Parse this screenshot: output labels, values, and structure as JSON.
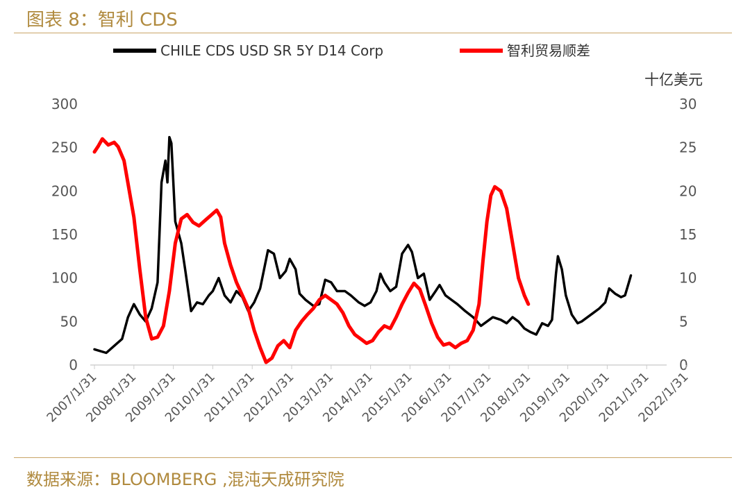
{
  "figure_title": "图表 8：智利 CDS",
  "source": "数据来源：BLOOMBERG ,混沌天成研究院",
  "chart_data": {
    "type": "line",
    "left_axis": {
      "ylim": [
        0,
        300
      ],
      "ticks": [
        "0",
        "50",
        "100",
        "150",
        "200",
        "250",
        "300"
      ]
    },
    "right_axis": {
      "unit": "十亿美元",
      "ylim": [
        0,
        30
      ],
      "ticks": [
        "0",
        "5",
        "10",
        "15",
        "20",
        "25",
        "30"
      ]
    },
    "x_tick_labels": [
      "2007/1/31",
      "2008/1/31",
      "2009/1/31",
      "2010/1/31",
      "2011/1/31",
      "2012/1/31",
      "2013/1/31",
      "2014/1/31",
      "2015/1/31",
      "2016/1/31",
      "2017/1/31",
      "2018/1/31",
      "2019/1/31",
      "2020/1/31",
      "2021/1/31",
      "2022/1/31"
    ],
    "legend_position": "top",
    "series": [
      {
        "name": "CHILE CDS USD SR 5Y D14 Corp",
        "color": "#000000",
        "axis": "left",
        "points": [
          [
            2007.0,
            18
          ],
          [
            2007.3,
            14
          ],
          [
            2007.45,
            20
          ],
          [
            2007.7,
            30
          ],
          [
            2007.85,
            55
          ],
          [
            2008.0,
            70
          ],
          [
            2008.15,
            58
          ],
          [
            2008.3,
            50
          ],
          [
            2008.45,
            65
          ],
          [
            2008.6,
            95
          ],
          [
            2008.7,
            210
          ],
          [
            2008.8,
            235
          ],
          [
            2008.85,
            210
          ],
          [
            2008.9,
            262
          ],
          [
            2008.95,
            255
          ],
          [
            2009.05,
            165
          ],
          [
            2009.2,
            140
          ],
          [
            2009.3,
            110
          ],
          [
            2009.45,
            62
          ],
          [
            2009.6,
            72
          ],
          [
            2009.75,
            70
          ],
          [
            2009.9,
            80
          ],
          [
            2010.0,
            85
          ],
          [
            2010.15,
            100
          ],
          [
            2010.3,
            80
          ],
          [
            2010.45,
            72
          ],
          [
            2010.6,
            85
          ],
          [
            2010.75,
            78
          ],
          [
            2010.9,
            62
          ],
          [
            2011.05,
            72
          ],
          [
            2011.2,
            88
          ],
          [
            2011.4,
            132
          ],
          [
            2011.55,
            128
          ],
          [
            2011.7,
            100
          ],
          [
            2011.85,
            108
          ],
          [
            2011.95,
            122
          ],
          [
            2012.1,
            110
          ],
          [
            2012.2,
            82
          ],
          [
            2012.35,
            75
          ],
          [
            2012.55,
            68
          ],
          [
            2012.7,
            70
          ],
          [
            2012.85,
            98
          ],
          [
            2013.0,
            95
          ],
          [
            2013.15,
            85
          ],
          [
            2013.35,
            85
          ],
          [
            2013.5,
            80
          ],
          [
            2013.7,
            72
          ],
          [
            2013.85,
            68
          ],
          [
            2014.0,
            72
          ],
          [
            2014.15,
            85
          ],
          [
            2014.25,
            105
          ],
          [
            2014.35,
            95
          ],
          [
            2014.5,
            85
          ],
          [
            2014.65,
            90
          ],
          [
            2014.8,
            128
          ],
          [
            2014.95,
            138
          ],
          [
            2015.05,
            130
          ],
          [
            2015.2,
            100
          ],
          [
            2015.35,
            105
          ],
          [
            2015.5,
            75
          ],
          [
            2015.65,
            85
          ],
          [
            2015.75,
            92
          ],
          [
            2015.9,
            80
          ],
          [
            2016.05,
            75
          ],
          [
            2016.2,
            70
          ],
          [
            2016.4,
            62
          ],
          [
            2016.6,
            55
          ],
          [
            2016.8,
            45
          ],
          [
            2016.95,
            50
          ],
          [
            2017.1,
            55
          ],
          [
            2017.3,
            52
          ],
          [
            2017.45,
            48
          ],
          [
            2017.6,
            55
          ],
          [
            2017.75,
            50
          ],
          [
            2017.9,
            42
          ],
          [
            2018.05,
            38
          ],
          [
            2018.2,
            35
          ],
          [
            2018.35,
            48
          ],
          [
            2018.5,
            45
          ],
          [
            2018.6,
            52
          ],
          [
            2018.7,
            105
          ],
          [
            2018.75,
            125
          ],
          [
            2018.85,
            110
          ],
          [
            2018.95,
            80
          ],
          [
            2019.1,
            58
          ],
          [
            2019.25,
            48
          ],
          [
            2019.35,
            50
          ],
          [
            2019.5,
            55
          ],
          [
            2019.65,
            60
          ],
          [
            2019.8,
            65
          ],
          [
            2019.95,
            72
          ],
          [
            2020.05,
            88
          ],
          [
            2020.2,
            82
          ],
          [
            2020.35,
            78
          ],
          [
            2020.45,
            80
          ],
          [
            2020.55,
            95
          ],
          [
            2020.6,
            103
          ]
        ]
      },
      {
        "name": "智利贸易顺差",
        "color": "#ff0000",
        "axis": "right",
        "points": [
          [
            2007.0,
            24.5
          ],
          [
            2007.1,
            25.2
          ],
          [
            2007.2,
            26.0
          ],
          [
            2007.35,
            25.3
          ],
          [
            2007.5,
            25.6
          ],
          [
            2007.6,
            25.1
          ],
          [
            2007.75,
            23.5
          ],
          [
            2008.0,
            17.0
          ],
          [
            2008.15,
            11.0
          ],
          [
            2008.3,
            5.5
          ],
          [
            2008.45,
            3.0
          ],
          [
            2008.6,
            3.2
          ],
          [
            2008.75,
            4.5
          ],
          [
            2008.9,
            8.5
          ],
          [
            2009.05,
            14.0
          ],
          [
            2009.2,
            16.8
          ],
          [
            2009.35,
            17.3
          ],
          [
            2009.5,
            16.4
          ],
          [
            2009.65,
            16.0
          ],
          [
            2009.8,
            16.6
          ],
          [
            2009.95,
            17.2
          ],
          [
            2010.1,
            17.8
          ],
          [
            2010.2,
            17.0
          ],
          [
            2010.3,
            14.0
          ],
          [
            2010.45,
            11.5
          ],
          [
            2010.6,
            9.5
          ],
          [
            2010.75,
            8.0
          ],
          [
            2010.9,
            6.5
          ],
          [
            2011.05,
            4.0
          ],
          [
            2011.2,
            2.0
          ],
          [
            2011.35,
            0.3
          ],
          [
            2011.5,
            0.8
          ],
          [
            2011.65,
            2.2
          ],
          [
            2011.8,
            2.8
          ],
          [
            2011.95,
            2.0
          ],
          [
            2012.1,
            4.0
          ],
          [
            2012.25,
            5.0
          ],
          [
            2012.4,
            5.8
          ],
          [
            2012.55,
            6.5
          ],
          [
            2012.7,
            7.5
          ],
          [
            2012.85,
            8.0
          ],
          [
            2013.0,
            7.5
          ],
          [
            2013.15,
            7.0
          ],
          [
            2013.3,
            6.0
          ],
          [
            2013.45,
            4.5
          ],
          [
            2013.6,
            3.5
          ],
          [
            2013.75,
            3.0
          ],
          [
            2013.9,
            2.5
          ],
          [
            2014.05,
            2.8
          ],
          [
            2014.2,
            3.8
          ],
          [
            2014.35,
            4.5
          ],
          [
            2014.5,
            4.2
          ],
          [
            2014.65,
            5.5
          ],
          [
            2014.8,
            7.0
          ],
          [
            2014.95,
            8.3
          ],
          [
            2015.1,
            9.4
          ],
          [
            2015.25,
            8.7
          ],
          [
            2015.4,
            6.8
          ],
          [
            2015.55,
            4.8
          ],
          [
            2015.7,
            3.2
          ],
          [
            2015.85,
            2.3
          ],
          [
            2016.0,
            2.5
          ],
          [
            2016.15,
            2.0
          ],
          [
            2016.3,
            2.5
          ],
          [
            2016.45,
            2.8
          ],
          [
            2016.6,
            4.0
          ],
          [
            2016.75,
            7.0
          ],
          [
            2016.85,
            12.0
          ],
          [
            2016.95,
            16.5
          ],
          [
            2017.05,
            19.5
          ],
          [
            2017.15,
            20.5
          ],
          [
            2017.3,
            20.0
          ],
          [
            2017.45,
            18.0
          ],
          [
            2017.6,
            14.0
          ],
          [
            2017.75,
            10.0
          ],
          [
            2017.9,
            8.0
          ],
          [
            2018.0,
            7.0
          ]
        ]
      }
    ]
  }
}
